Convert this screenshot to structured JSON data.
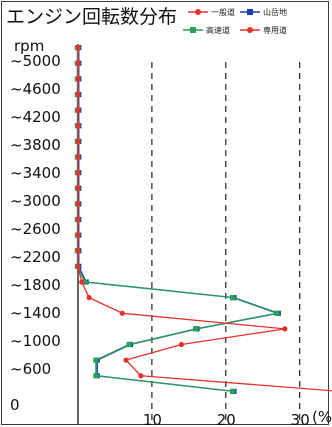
{
  "chart_data": {
    "type": "line",
    "title": "エンジン回転数分布",
    "y_unit": "rpm",
    "x_unit": "(%)",
    "y_tick_labels": [
      "~5000",
      "~4600",
      "~4200",
      "~3800",
      "~3400",
      "~3000",
      "~2600",
      "~2200",
      "~1800",
      "~1400",
      "~1000",
      "~600",
      "0"
    ],
    "x_tick_labels": [
      "10",
      "20",
      "30"
    ],
    "xlim": [
      0,
      36
    ],
    "ylim": [
      400,
      5200
    ],
    "grid_x": [
      10,
      20,
      30
    ],
    "categories_rpm": [
      5000,
      4800,
      4600,
      4400,
      4200,
      4000,
      3800,
      3600,
      3400,
      3200,
      3000,
      2800,
      2600,
      2400,
      2200,
      2000,
      1800,
      1600,
      1400,
      1200,
      1000,
      800,
      600
    ],
    "series": [
      {
        "name": "一般道",
        "color": "#e8312a",
        "marker": "circle",
        "values": [
          0,
          0,
          0,
          0,
          0,
          0,
          0,
          0,
          0,
          0,
          0,
          0,
          0,
          0,
          0,
          0.5,
          1.5,
          6,
          28,
          14,
          6.5,
          8.5,
          35.5
        ]
      },
      {
        "name": "山岳地",
        "color": "#1c3fae",
        "marker": "square",
        "values": [
          0,
          0,
          0,
          0,
          0,
          0,
          0,
          0,
          0,
          0,
          0,
          0,
          0,
          0,
          0,
          1,
          21,
          27,
          16,
          7,
          2.5,
          2.5,
          21
        ]
      },
      {
        "name": "高速道",
        "color": "#28a05a",
        "marker": "square",
        "values": [
          0,
          0,
          0,
          0,
          0,
          0,
          0,
          0,
          0,
          0,
          0,
          0,
          0,
          0,
          0,
          1,
          21,
          27,
          16,
          7,
          2.5,
          2.5,
          21
        ]
      },
      {
        "name": "専用道",
        "color": "#e8312a",
        "marker": "circle",
        "values": [
          0,
          0,
          0,
          0,
          0,
          0,
          0,
          0,
          0,
          0,
          0,
          0,
          0,
          0,
          0,
          0.5,
          1.5,
          6,
          28,
          14,
          6.5,
          8.5,
          35.5
        ]
      }
    ]
  },
  "legend": {
    "items": [
      {
        "label": "一般道",
        "color": "#e8312a",
        "marker": "circle"
      },
      {
        "label": "山岳地",
        "color": "#1c3fae",
        "marker": "square"
      },
      {
        "label": "高速道",
        "color": "#28a05a",
        "marker": "square"
      },
      {
        "label": "専用道",
        "color": "#e8312a",
        "marker": "circle"
      }
    ]
  }
}
